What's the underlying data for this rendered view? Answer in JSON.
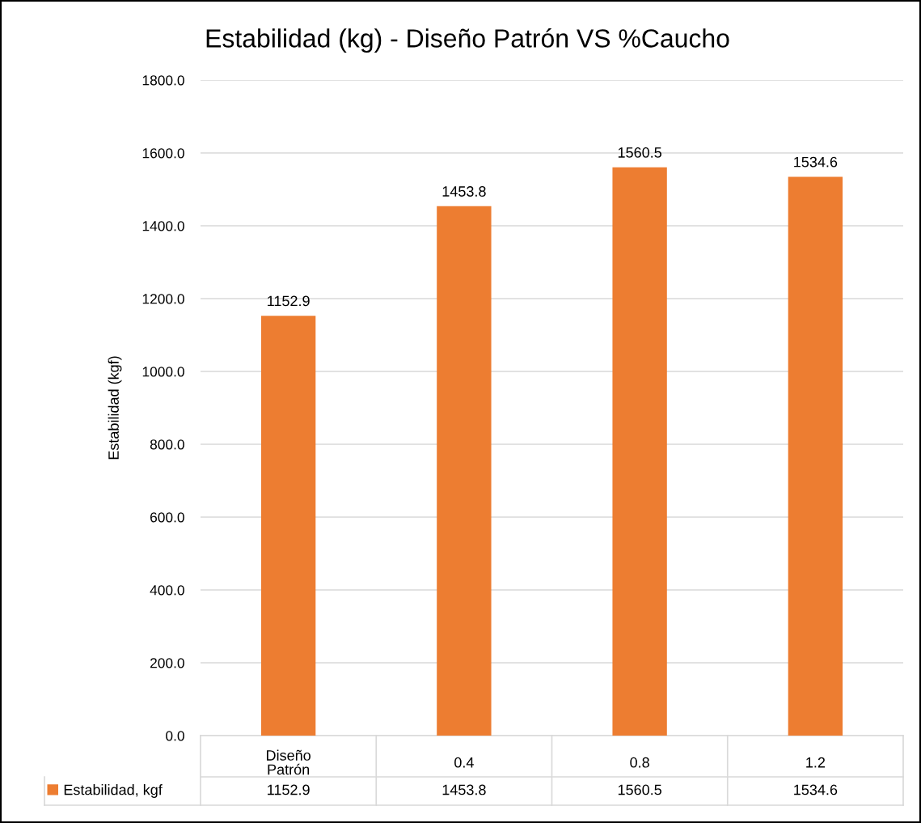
{
  "chart_data": {
    "type": "bar",
    "title": "Estabilidad (kg) - Diseño Patrón VS %Caucho",
    "ylabel": "Estabilidad (kgf)",
    "categories": [
      "Diseño\nPatrón",
      "0.4",
      "0.8",
      "1.2"
    ],
    "series": [
      {
        "name": "Estabilidad, kgf",
        "color": "#ed7d31",
        "values": [
          1152.9,
          1453.8,
          1560.5,
          1534.6
        ],
        "value_labels": [
          "1152.9",
          "1453.8",
          "1560.5",
          "1534.6"
        ]
      }
    ],
    "ylim": [
      0,
      1800
    ],
    "yticks": [
      {
        "value": 0,
        "label": "0.0"
      },
      {
        "value": 200,
        "label": "200.0"
      },
      {
        "value": 400,
        "label": "400.0"
      },
      {
        "value": 600,
        "label": "600.0"
      },
      {
        "value": 800,
        "label": "800.0"
      },
      {
        "value": 1000,
        "label": "1000.0"
      },
      {
        "value": 1200,
        "label": "1200.0"
      },
      {
        "value": 1400,
        "label": "1400.0"
      },
      {
        "value": 1600,
        "label": "1600.0"
      },
      {
        "value": 1800,
        "label": "1800.0"
      }
    ],
    "annotations": [
      "1152.9",
      "1453.8",
      "1560.5",
      "1534.6"
    ],
    "grid": "y",
    "legend": "bottom"
  }
}
